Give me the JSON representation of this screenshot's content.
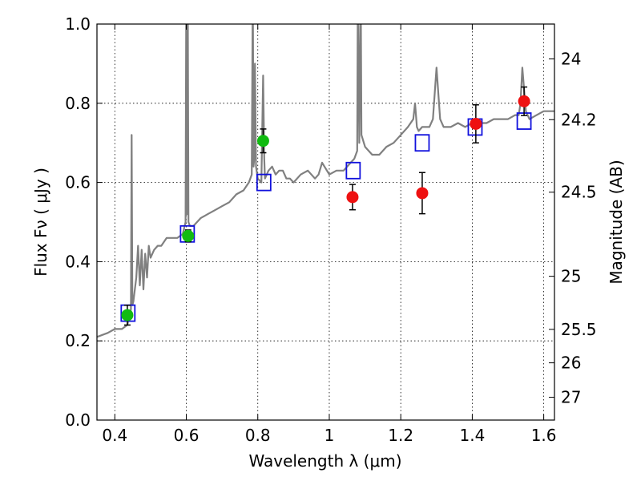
{
  "chart_data": {
    "type": "scatter",
    "title": "",
    "xlabel": "Wavelength  λ (μm)",
    "ylabel": "Flux  Fν  ( μJy )",
    "y2label": "Magnitude (AB)",
    "xlim": [
      0.35,
      1.63
    ],
    "ylim": [
      0.0,
      1.0
    ],
    "grid": true,
    "x_ticks": [
      0.4,
      0.6,
      0.8,
      1.0,
      1.2,
      1.4,
      1.6
    ],
    "x_tick_labels": [
      "0.4",
      "0.6",
      "0.8",
      "1",
      "1.2",
      "1.4",
      "1.6"
    ],
    "y_ticks": [
      0.0,
      0.2,
      0.4,
      0.6,
      0.8,
      1.0
    ],
    "y_tick_labels": [
      "0.0",
      "0.2",
      "0.4",
      "0.6",
      "0.8",
      "1.0"
    ],
    "y2_ticks": [
      24,
      24.2,
      24.5,
      25,
      25.5,
      26,
      27
    ],
    "y2_tick_labels": [
      "24",
      "24.2",
      "24.5",
      "25",
      "25.5",
      "26",
      "27"
    ],
    "colors": {
      "spectrum": "#808080",
      "green": "#11bb11",
      "red": "#ee1111",
      "model_box": "#1111dd",
      "errorbar": "#000000"
    },
    "series": [
      {
        "name": "Model spectrum",
        "kind": "line",
        "x": [
          0.35,
          0.38,
          0.4,
          0.42,
          0.435,
          0.445,
          0.447,
          0.449,
          0.452,
          0.46,
          0.465,
          0.47,
          0.475,
          0.48,
          0.485,
          0.49,
          0.495,
          0.5,
          0.51,
          0.52,
          0.53,
          0.545,
          0.56,
          0.575,
          0.59,
          0.598,
          0.6,
          0.602,
          0.604,
          0.606,
          0.61,
          0.62,
          0.64,
          0.66,
          0.68,
          0.7,
          0.72,
          0.74,
          0.76,
          0.775,
          0.783,
          0.786,
          0.788,
          0.79,
          0.792,
          0.795,
          0.8,
          0.81,
          0.815,
          0.818,
          0.82,
          0.83,
          0.84,
          0.85,
          0.86,
          0.87,
          0.88,
          0.89,
          0.9,
          0.92,
          0.94,
          0.96,
          0.97,
          0.98,
          1.0,
          1.02,
          1.04,
          1.06,
          1.07,
          1.078,
          1.08,
          1.084,
          1.088,
          1.09,
          1.1,
          1.12,
          1.14,
          1.16,
          1.18,
          1.2,
          1.22,
          1.235,
          1.24,
          1.245,
          1.25,
          1.26,
          1.28,
          1.29,
          1.3,
          1.31,
          1.32,
          1.34,
          1.36,
          1.38,
          1.4,
          1.42,
          1.44,
          1.46,
          1.48,
          1.5,
          1.52,
          1.53,
          1.535,
          1.54,
          1.55,
          1.56,
          1.58,
          1.6,
          1.62,
          1.63
        ],
        "y": [
          0.21,
          0.22,
          0.23,
          0.23,
          0.24,
          0.28,
          0.72,
          0.29,
          0.3,
          0.36,
          0.44,
          0.34,
          0.43,
          0.33,
          0.42,
          0.36,
          0.44,
          0.41,
          0.43,
          0.44,
          0.44,
          0.46,
          0.46,
          0.46,
          0.47,
          0.5,
          1.1,
          0.52,
          1.1,
          0.5,
          0.49,
          0.49,
          0.51,
          0.52,
          0.53,
          0.54,
          0.55,
          0.57,
          0.58,
          0.6,
          0.62,
          1.1,
          0.64,
          0.66,
          0.9,
          0.64,
          0.61,
          0.6,
          0.87,
          0.66,
          0.61,
          0.63,
          0.64,
          0.62,
          0.63,
          0.63,
          0.61,
          0.61,
          0.6,
          0.62,
          0.63,
          0.61,
          0.62,
          0.65,
          0.62,
          0.63,
          0.63,
          0.65,
          0.66,
          0.68,
          1.1,
          0.7,
          1.1,
          0.72,
          0.69,
          0.67,
          0.67,
          0.69,
          0.7,
          0.72,
          0.74,
          0.76,
          0.8,
          0.74,
          0.73,
          0.74,
          0.74,
          0.76,
          0.89,
          0.76,
          0.74,
          0.74,
          0.75,
          0.74,
          0.75,
          0.75,
          0.75,
          0.76,
          0.76,
          0.76,
          0.77,
          0.77,
          0.8,
          0.89,
          0.78,
          0.76,
          0.77,
          0.78,
          0.78,
          0.78
        ]
      },
      {
        "name": "Green photometry",
        "kind": "points",
        "x": [
          0.435,
          0.605,
          0.815
        ],
        "y": [
          0.265,
          0.465,
          0.705
        ],
        "yerr": [
          0.025,
          0.015,
          0.03
        ]
      },
      {
        "name": "Red photometry",
        "kind": "points",
        "x": [
          1.065,
          1.26,
          1.41,
          1.545
        ],
        "y": [
          0.563,
          0.573,
          0.748,
          0.805
        ],
        "yerr": [
          0.032,
          0.052,
          0.048,
          0.036
        ]
      },
      {
        "name": "Model fluxes",
        "kind": "boxes",
        "x": [
          0.437,
          0.603,
          0.817,
          1.067,
          1.26,
          1.408,
          1.545
        ],
        "y": [
          0.27,
          0.47,
          0.6,
          0.63,
          0.7,
          0.74,
          0.755
        ]
      }
    ]
  }
}
